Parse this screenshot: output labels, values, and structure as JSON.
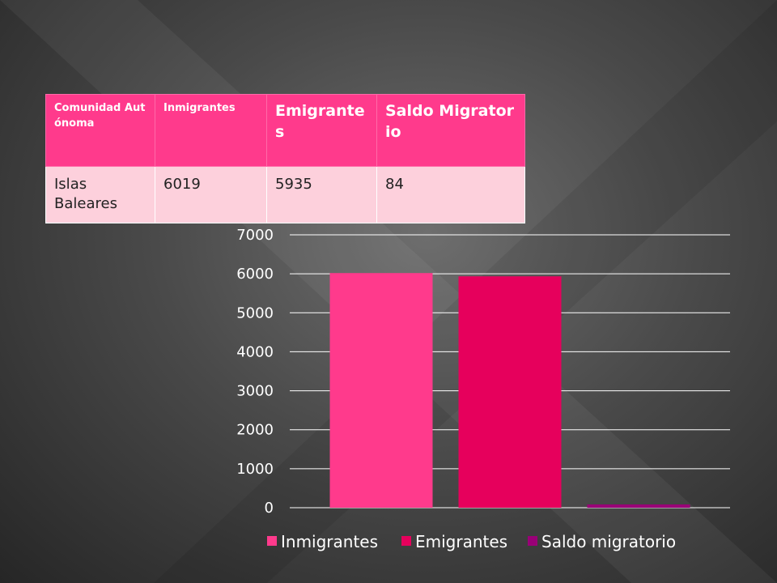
{
  "table": {
    "headers": [
      "Comunidad Autónoma",
      "Inmigrantes",
      "Emigrantes",
      "Saldo Migratorio"
    ],
    "row": [
      "Islas Baleares",
      "6019",
      "5935",
      "84"
    ]
  },
  "chart_data": {
    "type": "bar",
    "categories": [
      ""
    ],
    "series": [
      {
        "name": "Inmigrantes",
        "values": [
          6019
        ],
        "color": "#ff3a8c"
      },
      {
        "name": "Emigrantes",
        "values": [
          5935
        ],
        "color": "#e6005c"
      },
      {
        "name": "Saldo migratorio",
        "values": [
          84
        ],
        "color": "#990077"
      }
    ],
    "ylim": [
      0,
      7000
    ],
    "yticks": [
      "0",
      "1000",
      "2000",
      "3000",
      "4000",
      "5000",
      "6000",
      "7000"
    ],
    "grid": true,
    "legend_position": "bottom"
  }
}
